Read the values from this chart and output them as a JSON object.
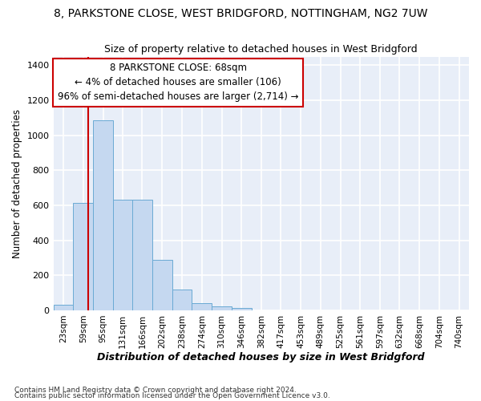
{
  "title_line1": "8, PARKSTONE CLOSE, WEST BRIDGFORD, NOTTINGHAM, NG2 7UW",
  "title_line2": "Size of property relative to detached houses in West Bridgford",
  "xlabel": "Distribution of detached houses by size in West Bridgford",
  "ylabel": "Number of detached properties",
  "bar_color": "#c5d8f0",
  "bar_edge_color": "#6aaad4",
  "fig_bg_color": "#ffffff",
  "plot_bg_color": "#e8eef8",
  "grid_color": "#ffffff",
  "bins": [
    "23sqm",
    "59sqm",
    "95sqm",
    "131sqm",
    "166sqm",
    "202sqm",
    "238sqm",
    "274sqm",
    "310sqm",
    "346sqm",
    "382sqm",
    "417sqm",
    "453sqm",
    "489sqm",
    "525sqm",
    "561sqm",
    "597sqm",
    "632sqm",
    "668sqm",
    "704sqm",
    "740sqm"
  ],
  "values": [
    30,
    615,
    1085,
    630,
    630,
    290,
    120,
    43,
    24,
    15,
    0,
    0,
    0,
    0,
    0,
    0,
    0,
    0,
    0,
    0
  ],
  "ylim": [
    0,
    1450
  ],
  "yticks": [
    0,
    200,
    400,
    600,
    800,
    1000,
    1200,
    1400
  ],
  "vline_x": 68,
  "vline_color": "#cc0000",
  "annotation_text": "8 PARKSTONE CLOSE: 68sqm\n← 4% of detached houses are smaller (106)\n96% of semi-detached houses are larger (2,714) →",
  "annotation_box_color": "#ffffff",
  "annotation_box_edge_color": "#cc0000",
  "footnote1": "Contains HM Land Registry data © Crown copyright and database right 2024.",
  "footnote2": "Contains public sector information licensed under the Open Government Licence v3.0."
}
